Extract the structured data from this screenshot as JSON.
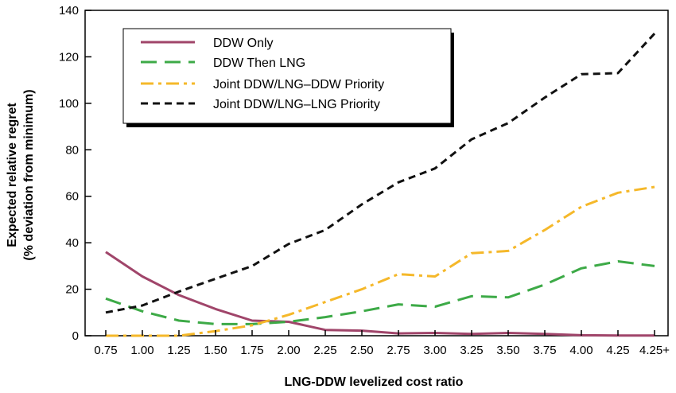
{
  "chart_data": {
    "type": "line",
    "xlabel": "LNG-DDW levelized cost ratio",
    "ylabel_line1": "Expected relative regret",
    "ylabel_line2": "(% deviation from minimum)",
    "categories": [
      "0.75",
      "1.00",
      "1.25",
      "1.50",
      "1.75",
      "2.00",
      "2.25",
      "2.50",
      "2.75",
      "3.00",
      "3.25",
      "3.50",
      "3.75",
      "4.00",
      "4.25",
      "4.25+"
    ],
    "ylim": [
      0,
      140
    ],
    "yticks": [
      0,
      20,
      40,
      60,
      80,
      100,
      120,
      140
    ],
    "grid": false,
    "legend_position": "top-left",
    "series": [
      {
        "name": "DDW Only",
        "color": "#a0456a",
        "dash": "solid",
        "values": [
          36,
          25.5,
          17.5,
          11.5,
          6.5,
          6,
          2.5,
          2.2,
          1,
          1.2,
          0.8,
          1.2,
          0.8,
          0.2,
          0.1,
          0.1
        ]
      },
      {
        "name": "DDW Then LNG",
        "color": "#3daa47",
        "dash": "long-dash",
        "values": [
          16,
          10.5,
          6.5,
          5,
          5,
          6,
          8,
          10.5,
          13.5,
          12.5,
          17,
          16.5,
          22,
          29,
          32,
          30
        ]
      },
      {
        "name": "Joint DDW/LNG–DDW Priority",
        "color": "#f5b82a",
        "dash": "dash-dot",
        "values": [
          0,
          0,
          0,
          2,
          4.5,
          9,
          14.5,
          20,
          26.5,
          25.5,
          35.5,
          36.5,
          45.5,
          55.5,
          61.5,
          64
        ]
      },
      {
        "name": "Joint DDW/LNG–LNG Priority",
        "color": "#111111",
        "dash": "short-dash",
        "values": [
          10,
          13,
          19,
          24.5,
          30,
          39.5,
          45.5,
          56.5,
          66,
          72,
          84.5,
          91.5,
          102.5,
          112.5,
          113,
          130
        ]
      }
    ]
  }
}
